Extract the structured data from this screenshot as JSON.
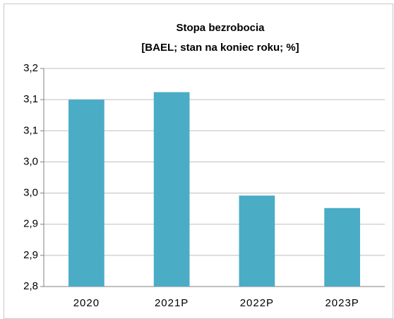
{
  "chart_data": {
    "type": "bar",
    "title": "Stopa bezrobocia",
    "subtitle": "[BAEL; stan na koniec roku; %]",
    "categories": [
      "2020",
      "2021P",
      "2022P",
      "2023P"
    ],
    "values": [
      3.1,
      3.112,
      2.946,
      2.926
    ],
    "color": "#4bacc6",
    "ylim": [
      2.8,
      3.15
    ],
    "yticks": [
      {
        "value": 2.8,
        "label": "2,8"
      },
      {
        "value": 2.85,
        "label": "2,9"
      },
      {
        "value": 2.9,
        "label": "2,9"
      },
      {
        "value": 2.95,
        "label": "3,0"
      },
      {
        "value": 3.0,
        "label": "3,0"
      },
      {
        "value": 3.05,
        "label": "3,1"
      },
      {
        "value": 3.1,
        "label": "3,1"
      },
      {
        "value": 3.15,
        "label": "3,2"
      }
    ],
    "grid": true
  }
}
